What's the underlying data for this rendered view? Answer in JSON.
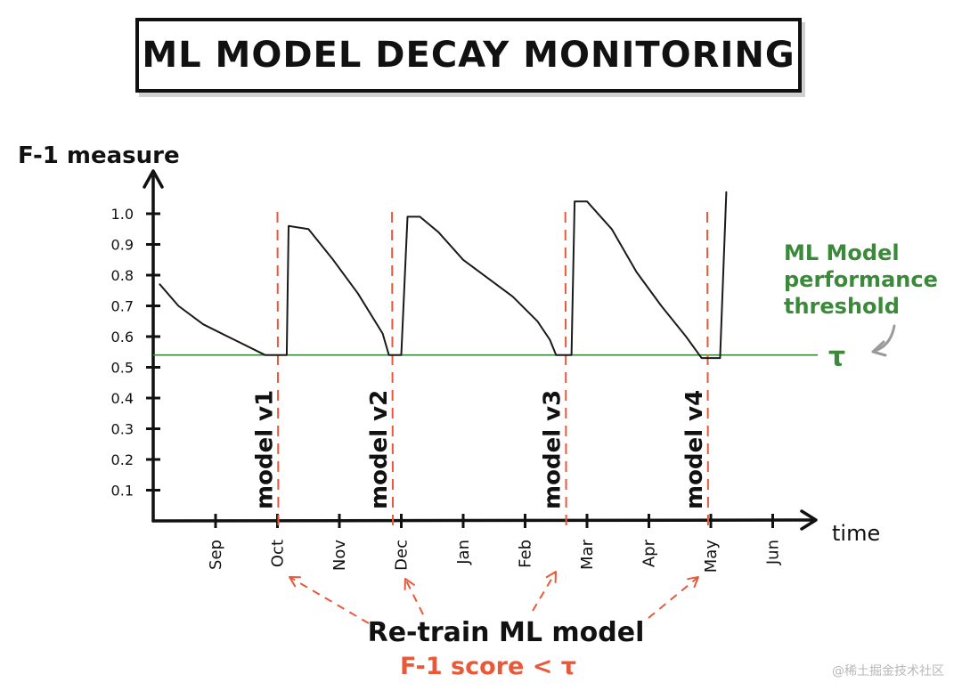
{
  "title": "ML MODEL DECAY  MONITORING",
  "watermark": "@稀土掘金技术社区",
  "chart_data": {
    "type": "line",
    "ylabel": "F-1 measure",
    "xlabel": "time",
    "ylim": [
      0,
      1.1
    ],
    "yticks": [
      "0.1",
      "0.2",
      "0.3",
      "0.4",
      "0.5",
      "0.6",
      "0.7",
      "0.8",
      "0.9",
      "1.0"
    ],
    "xticks": [
      "Sep",
      "Oct",
      "Nov",
      "Dec",
      "Jan",
      "Feb",
      "Mar",
      "Apr",
      "May",
      "Jun"
    ],
    "series": [
      {
        "x": [
          -0.9,
          -0.6,
          -0.2,
          0.3,
          0.8,
          0.95,
          1.15,
          1.18,
          1.5,
          1.9,
          2.3,
          2.7,
          2.8,
          2.95,
          3.0,
          3.1,
          3.3,
          3.6,
          4.0,
          4.4,
          4.8,
          5.2,
          5.4,
          5.5,
          5.6,
          5.7,
          5.75,
          5.8,
          6.0,
          6.4,
          6.8,
          7.2,
          7.6,
          7.85,
          8.0,
          8.1,
          8.15,
          8.25
        ],
        "y": [
          0.77,
          0.7,
          0.64,
          0.59,
          0.54,
          0.54,
          0.54,
          0.96,
          0.95,
          0.85,
          0.74,
          0.61,
          0.54,
          0.54,
          0.54,
          0.99,
          0.99,
          0.94,
          0.85,
          0.79,
          0.73,
          0.65,
          0.59,
          0.54,
          0.54,
          0.54,
          0.54,
          1.04,
          1.04,
          0.95,
          0.81,
          0.7,
          0.6,
          0.53,
          0.53,
          0.53,
          0.53,
          1.07
        ]
      }
    ],
    "threshold": {
      "value": 0.54,
      "symbol": "τ",
      "label": "ML Model performance threshold"
    },
    "retrains": [
      {
        "x": 1.0,
        "label": "model v1"
      },
      {
        "x": 2.85,
        "label": "model v2"
      },
      {
        "x": 5.65,
        "label": "model v3"
      },
      {
        "x": 8.0,
        "label": "model v4"
      }
    ],
    "annotation": {
      "line1": "Re-train  ML model",
      "line2": "F-1 score < τ"
    },
    "colors": {
      "line": "#1a1a1a",
      "threshold": "#3a8a3a",
      "retrain": "#e8593a",
      "axis": "#111111"
    },
    "grid": false
  }
}
